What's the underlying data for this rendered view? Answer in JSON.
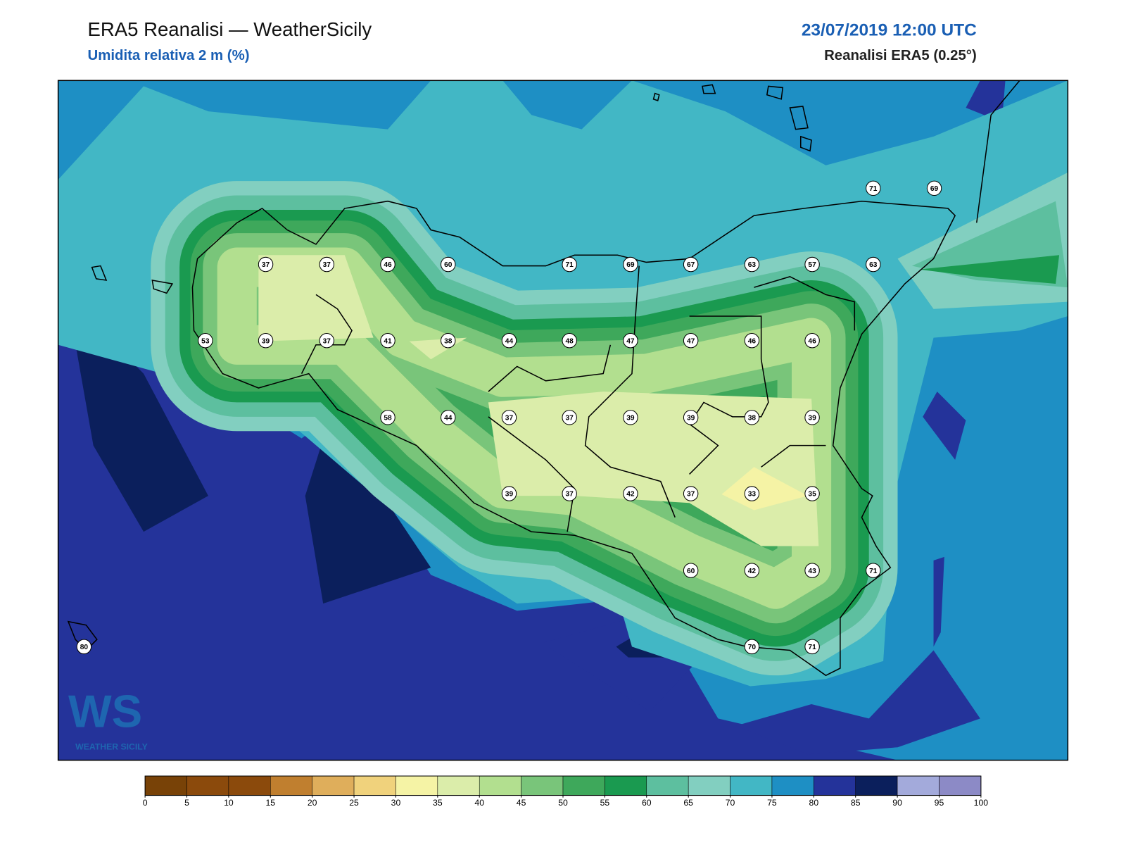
{
  "header": {
    "title": "ERA5 Reanalisi — WeatherSicily",
    "subtitle": "Umidita relativa 2 m (%)",
    "datetime": "23/07/2019 12:00 UTC",
    "source": "Reanalisi ERA5 (0.25°)"
  },
  "stations": [
    71,
    69,
    37,
    37,
    46,
    60,
    71,
    69,
    67,
    63,
    57,
    63,
    53,
    39,
    37,
    41,
    38,
    44,
    48,
    47,
    47,
    46,
    46,
    58,
    44,
    37,
    37,
    39,
    39,
    38,
    39,
    39,
    37,
    42,
    37,
    33,
    35,
    60,
    42,
    43,
    71,
    80,
    70,
    71
  ],
  "colorbar": {
    "ticks": [
      0,
      5,
      10,
      15,
      20,
      25,
      30,
      35,
      40,
      45,
      50,
      55,
      60,
      65,
      70,
      75,
      80,
      85,
      90,
      95,
      100
    ],
    "colors": [
      "#784207",
      "#8b4a0c",
      "#8b4a0c",
      "#c07f2f",
      "#dfae5b",
      "#f0d27c",
      "#f5f3a5",
      "#dbedaa",
      "#b2df8f",
      "#79c57a",
      "#3ea85b",
      "#1a9a50",
      "#5dbf9f",
      "#82cfc0",
      "#42b7c5",
      "#1e8fc4",
      "#24339a",
      "#0b1f5c",
      "#a3aadb",
      "#8c8ac6"
    ]
  },
  "logo": {
    "mark": "WS",
    "name": "WEATHER SICILY"
  }
}
